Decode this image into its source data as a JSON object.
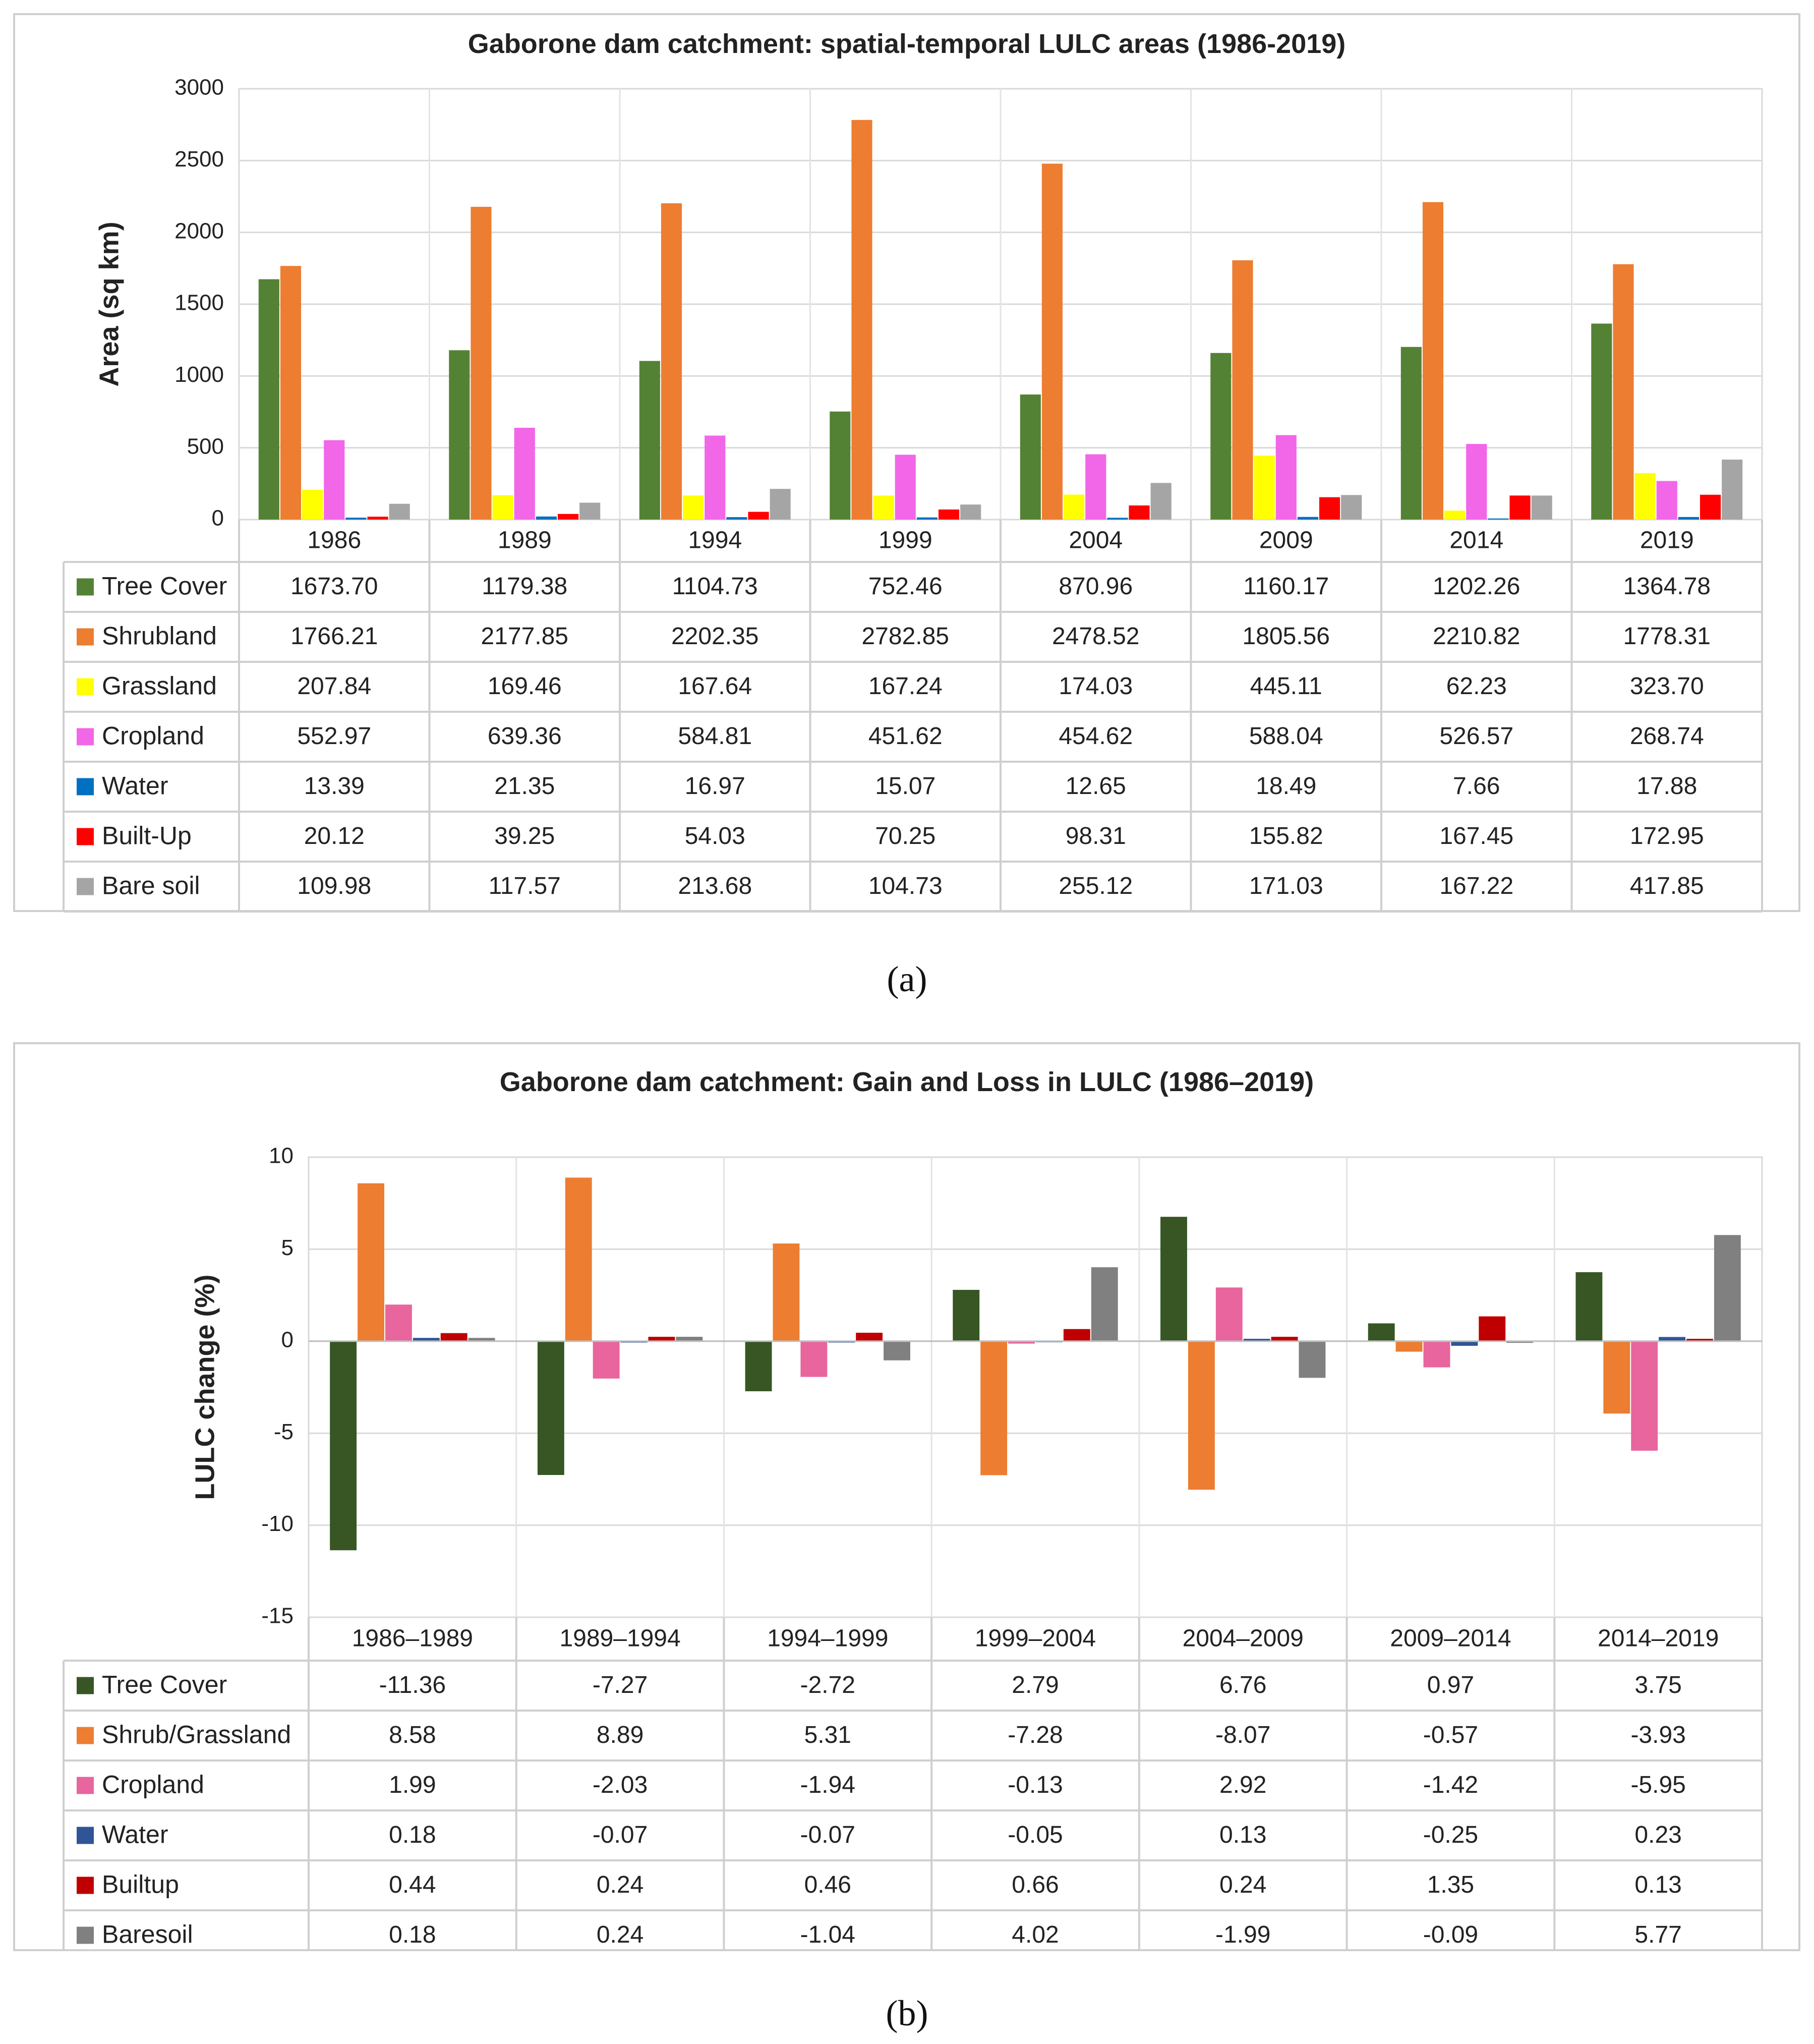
{
  "chart_data": [
    {
      "type": "bar",
      "title": "Gaborone dam catchment: spatial-temporal LULC areas (1986-2019)",
      "ylabel": "Area (sq km)",
      "xlabel": "",
      "ylim": [
        0,
        3000
      ],
      "yticks": [
        "0",
        "500",
        "1000",
        "1500",
        "2000",
        "2500",
        "3000"
      ],
      "gridlines": true,
      "legend": "data-table",
      "categories": [
        "1986",
        "1989",
        "1994",
        "1999",
        "2004",
        "2009",
        "2014",
        "2019"
      ],
      "series": [
        {
          "name": "Tree Cover",
          "color": "#548235",
          "values": [
            1673.7,
            1179.38,
            1104.73,
            752.46,
            870.96,
            1160.17,
            1202.26,
            1364.78
          ],
          "labels": [
            "1673.70",
            "1179.38",
            "1104.73",
            "752.46",
            "870.96",
            "1160.17",
            "1202.26",
            "1364.78"
          ]
        },
        {
          "name": "Shrubland",
          "color": "#ED7D31",
          "values": [
            1766.21,
            2177.85,
            2202.35,
            2782.85,
            2478.52,
            1805.56,
            2210.82,
            1778.31
          ],
          "labels": [
            "1766.21",
            "2177.85",
            "2202.35",
            "2782.85",
            "2478.52",
            "1805.56",
            "2210.82",
            "1778.31"
          ]
        },
        {
          "name": "Grassland",
          "color": "#FFFF00",
          "values": [
            207.84,
            169.46,
            167.64,
            167.24,
            174.03,
            445.11,
            62.23,
            323.7
          ],
          "labels": [
            "207.84",
            "169.46",
            "167.64",
            "167.24",
            "174.03",
            "445.11",
            "62.23",
            "323.70"
          ]
        },
        {
          "name": "Cropland",
          "color": "#F266E8",
          "values": [
            552.97,
            639.36,
            584.81,
            451.62,
            454.62,
            588.04,
            526.57,
            268.74
          ],
          "labels": [
            "552.97",
            "639.36",
            "584.81",
            "451.62",
            "454.62",
            "588.04",
            "526.57",
            "268.74"
          ]
        },
        {
          "name": "Water",
          "color": "#0070C0",
          "values": [
            13.39,
            21.35,
            16.97,
            15.07,
            12.65,
            18.49,
            7.66,
            17.88
          ],
          "labels": [
            "13.39",
            "21.35",
            "16.97",
            "15.07",
            "12.65",
            "18.49",
            "7.66",
            "17.88"
          ]
        },
        {
          "name": "Built-Up",
          "color": "#FF0000",
          "values": [
            20.12,
            39.25,
            54.03,
            70.25,
            98.31,
            155.82,
            167.45,
            172.95
          ],
          "labels": [
            "20.12",
            "39.25",
            "54.03",
            "70.25",
            "98.31",
            "155.82",
            "167.45",
            "172.95"
          ]
        },
        {
          "name": "Bare soil",
          "color": "#A5A5A5",
          "values": [
            109.98,
            117.57,
            213.68,
            104.73,
            255.12,
            171.03,
            167.22,
            417.85
          ],
          "labels": [
            "109.98",
            "117.57",
            "213.68",
            "104.73",
            "255.12",
            "171.03",
            "167.22",
            "417.85"
          ]
        }
      ],
      "caption": "(a)"
    },
    {
      "type": "bar",
      "title": "Gaborone dam catchment: Gain and Loss in LULC (1986–2019)",
      "ylabel": "LULC change (%)",
      "xlabel": "",
      "ylim": [
        -15,
        10
      ],
      "yticks": [
        "-15",
        "-10",
        "-5",
        "0",
        "5",
        "10"
      ],
      "gridlines": true,
      "legend": "data-table",
      "categories": [
        "1986–1989",
        "1989–1994",
        "1994–1999",
        "1999–2004",
        "2004–2009",
        "2009–2014",
        "2014–2019"
      ],
      "series": [
        {
          "name": "Tree Cover",
          "color": "#375623",
          "values": [
            -11.36,
            -7.27,
            -2.72,
            2.79,
            6.76,
            0.97,
            3.75
          ],
          "labels": [
            "-11.36",
            "-7.27",
            "-2.72",
            "2.79",
            "6.76",
            "0.97",
            "3.75"
          ]
        },
        {
          "name": "Shrub/Grassland",
          "color": "#ED7D31",
          "values": [
            8.58,
            8.89,
            5.31,
            -7.28,
            -8.07,
            -0.57,
            -3.93
          ],
          "labels": [
            "8.58",
            "8.89",
            "5.31",
            "-7.28",
            "-8.07",
            "-0.57",
            "-3.93"
          ]
        },
        {
          "name": "Cropland",
          "color": "#E8659E",
          "values": [
            1.99,
            -2.03,
            -1.94,
            -0.13,
            2.92,
            -1.42,
            -5.95
          ],
          "labels": [
            "1.99",
            "-2.03",
            "-1.94",
            "-0.13",
            "2.92",
            "-1.42",
            "-5.95"
          ]
        },
        {
          "name": "Water",
          "color": "#2F5597",
          "values": [
            0.18,
            -0.07,
            -0.07,
            -0.05,
            0.13,
            -0.25,
            0.23
          ],
          "labels": [
            "0.18",
            "-0.07",
            "-0.07",
            "-0.05",
            "0.13",
            "-0.25",
            "0.23"
          ]
        },
        {
          "name": "Builtup",
          "color": "#C00000",
          "values": [
            0.44,
            0.24,
            0.46,
            0.66,
            0.24,
            1.35,
            0.13
          ],
          "labels": [
            "0.44",
            "0.24",
            "0.46",
            "0.66",
            "0.24",
            "1.35",
            "0.13"
          ]
        },
        {
          "name": "Baresoil",
          "color": "#808080",
          "values": [
            0.18,
            0.24,
            -1.04,
            4.02,
            -1.99,
            -0.09,
            5.77
          ],
          "labels": [
            "0.18",
            "0.24",
            "-1.04",
            "4.02",
            "-1.99",
            "-0.09",
            "5.77"
          ]
        }
      ],
      "caption": "(b)"
    }
  ]
}
